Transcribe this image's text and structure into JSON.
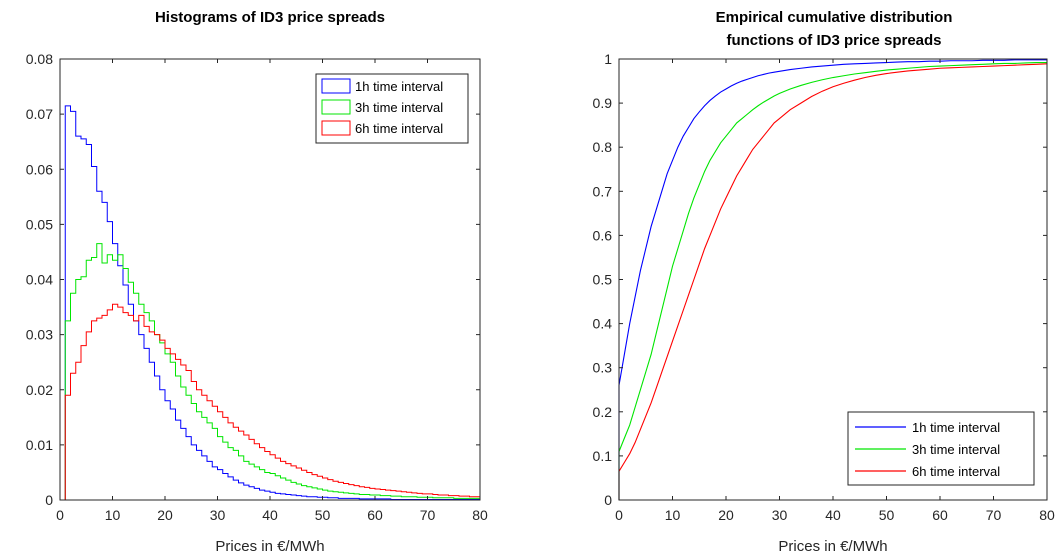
{
  "chart_data": [
    {
      "type": "histogram",
      "title": "Histograms of ID3 price spreads",
      "xlabel": "Prices in €/MWh",
      "ylabel": "",
      "xlim": [
        0,
        80
      ],
      "ylim": [
        0,
        0.08
      ],
      "xticks": [
        "0",
        "10",
        "20",
        "30",
        "40",
        "50",
        "60",
        "70",
        "80"
      ],
      "yticks": [
        "0",
        "0.01",
        "0.02",
        "0.03",
        "0.04",
        "0.05",
        "0.06",
        "0.07",
        "0.08"
      ],
      "bin_edges_start": 1,
      "bin_width": 1,
      "grid": false,
      "legend_position": "top-right",
      "series": [
        {
          "name": "1h time interval",
          "color": "#0000ff",
          "values": [
            0.0715,
            0.0705,
            0.066,
            0.0655,
            0.0645,
            0.0605,
            0.056,
            0.054,
            0.0505,
            0.0465,
            0.0425,
            0.039,
            0.0355,
            0.0325,
            0.03,
            0.0275,
            0.025,
            0.0225,
            0.02,
            0.018,
            0.0165,
            0.0145,
            0.013,
            0.0115,
            0.01,
            0.009,
            0.008,
            0.007,
            0.006,
            0.0055,
            0.0048,
            0.0042,
            0.0036,
            0.0031,
            0.0027,
            0.0024,
            0.0021,
            0.0018,
            0.0016,
            0.0014,
            0.0012,
            0.0011,
            0.001,
            0.0009,
            0.0008,
            0.0007,
            0.0006,
            0.0006,
            0.0005,
            0.0005,
            0.0004,
            0.0004,
            0.0003,
            0.0003,
            0.0003,
            0.0003,
            0.0002,
            0.0002,
            0.0002,
            0.0002,
            0.0002,
            0.0002,
            0.0001,
            0.0001,
            0.0001,
            0.0001,
            0.0001,
            0.0001,
            0.0001,
            0.0001,
            0.0001,
            0.0001,
            0.0001,
            0.0001,
            0.0001,
            0.0001,
            0.0001,
            0.0001,
            0.0001
          ]
        },
        {
          "name": "3h time interval",
          "color": "#00e600",
          "values": [
            0.0325,
            0.0375,
            0.04,
            0.0405,
            0.0435,
            0.044,
            0.0465,
            0.043,
            0.0445,
            0.0435,
            0.0445,
            0.042,
            0.0395,
            0.0375,
            0.0355,
            0.034,
            0.0325,
            0.03,
            0.0285,
            0.0265,
            0.025,
            0.0225,
            0.0205,
            0.019,
            0.0175,
            0.016,
            0.015,
            0.014,
            0.013,
            0.0115,
            0.0105,
            0.0095,
            0.009,
            0.008,
            0.007,
            0.0065,
            0.006,
            0.0055,
            0.005,
            0.0048,
            0.0044,
            0.004,
            0.0036,
            0.0032,
            0.0029,
            0.0026,
            0.0024,
            0.0022,
            0.002,
            0.0018,
            0.0016,
            0.0015,
            0.0014,
            0.0013,
            0.0012,
            0.0011,
            0.001,
            0.001,
            0.0009,
            0.0009,
            0.0008,
            0.0008,
            0.0007,
            0.0007,
            0.0006,
            0.0006,
            0.0006,
            0.0005,
            0.0005,
            0.0005,
            0.0004,
            0.0004,
            0.0004,
            0.0004,
            0.0003,
            0.0003,
            0.0003,
            0.0003,
            0.0003
          ]
        },
        {
          "name": "6h time interval",
          "color": "#ff0000",
          "values": [
            0.019,
            0.023,
            0.025,
            0.028,
            0.0305,
            0.0325,
            0.033,
            0.0335,
            0.0345,
            0.0355,
            0.035,
            0.034,
            0.0335,
            0.0325,
            0.0335,
            0.0315,
            0.0305,
            0.03,
            0.029,
            0.0275,
            0.0265,
            0.0255,
            0.0245,
            0.0235,
            0.0215,
            0.02,
            0.019,
            0.018,
            0.017,
            0.016,
            0.015,
            0.014,
            0.0132,
            0.0125,
            0.0118,
            0.011,
            0.0102,
            0.0095,
            0.0088,
            0.0082,
            0.0076,
            0.007,
            0.0066,
            0.0062,
            0.0058,
            0.0054,
            0.005,
            0.0046,
            0.0043,
            0.004,
            0.0037,
            0.0034,
            0.0032,
            0.003,
            0.0028,
            0.0026,
            0.0024,
            0.0023,
            0.0021,
            0.002,
            0.0019,
            0.0018,
            0.0017,
            0.0016,
            0.0015,
            0.0014,
            0.0013,
            0.0012,
            0.0011,
            0.0011,
            0.001,
            0.0009,
            0.0009,
            0.0008,
            0.0008,
            0.0007,
            0.0007,
            0.0006,
            0.0006
          ]
        }
      ]
    },
    {
      "type": "line",
      "title": "Empirical cumulative distribution functions of ID3 price spreads",
      "title_lines": [
        "Empirical cumulative distribution",
        "functions of ID3 price spreads"
      ],
      "xlabel": "Prices in €/MWh",
      "ylabel": "",
      "xlim": [
        0,
        80
      ],
      "ylim": [
        0,
        1
      ],
      "xticks": [
        "0",
        "10",
        "20",
        "30",
        "40",
        "50",
        "60",
        "70",
        "80"
      ],
      "yticks": [
        "0",
        "0.1",
        "0.2",
        "0.3",
        "0.4",
        "0.5",
        "0.6",
        "0.7",
        "0.8",
        "0.9",
        "1"
      ],
      "grid": false,
      "legend_position": "bottom-right",
      "x": [
        0,
        1,
        2,
        3,
        4,
        5,
        6,
        7,
        8,
        9,
        10,
        11,
        12,
        13,
        14,
        15,
        16,
        17,
        18,
        19,
        20,
        21,
        22,
        23,
        24,
        25,
        26,
        27,
        28,
        29,
        30,
        32,
        34,
        36,
        38,
        40,
        42,
        44,
        46,
        48,
        50,
        52,
        54,
        56,
        58,
        60,
        62,
        64,
        66,
        68,
        70,
        72,
        74,
        76,
        78,
        80
      ],
      "series": [
        {
          "name": "1h time interval",
          "color": "#0000ff",
          "start": 0.26,
          "values": [
            0.26,
            0.33,
            0.4,
            0.46,
            0.52,
            0.57,
            0.62,
            0.66,
            0.7,
            0.74,
            0.77,
            0.8,
            0.825,
            0.845,
            0.865,
            0.88,
            0.894,
            0.906,
            0.916,
            0.925,
            0.932,
            0.939,
            0.945,
            0.95,
            0.954,
            0.958,
            0.962,
            0.965,
            0.968,
            0.97,
            0.972,
            0.976,
            0.979,
            0.982,
            0.984,
            0.986,
            0.988,
            0.989,
            0.99,
            0.991,
            0.992,
            0.993,
            0.994,
            0.994,
            0.995,
            0.995,
            0.996,
            0.996,
            0.996,
            0.997,
            0.997,
            0.997,
            0.998,
            0.998,
            0.998,
            0.998
          ]
        },
        {
          "name": "3h time interval",
          "color": "#00e600",
          "start": 0.11,
          "values": [
            0.11,
            0.14,
            0.17,
            0.21,
            0.25,
            0.29,
            0.33,
            0.38,
            0.43,
            0.48,
            0.53,
            0.57,
            0.61,
            0.65,
            0.685,
            0.715,
            0.745,
            0.77,
            0.79,
            0.81,
            0.825,
            0.84,
            0.855,
            0.865,
            0.875,
            0.885,
            0.894,
            0.902,
            0.909,
            0.916,
            0.922,
            0.932,
            0.94,
            0.947,
            0.953,
            0.958,
            0.962,
            0.966,
            0.969,
            0.972,
            0.975,
            0.977,
            0.979,
            0.981,
            0.983,
            0.984,
            0.985,
            0.986,
            0.987,
            0.988,
            0.989,
            0.99,
            0.99,
            0.991,
            0.992,
            0.992
          ]
        },
        {
          "name": "6h time interval",
          "color": "#ff0000",
          "start": 0.065,
          "values": [
            0.065,
            0.085,
            0.105,
            0.13,
            0.16,
            0.19,
            0.22,
            0.255,
            0.29,
            0.325,
            0.36,
            0.395,
            0.43,
            0.465,
            0.5,
            0.535,
            0.57,
            0.6,
            0.63,
            0.66,
            0.685,
            0.71,
            0.735,
            0.755,
            0.775,
            0.795,
            0.81,
            0.825,
            0.84,
            0.855,
            0.865,
            0.885,
            0.9,
            0.915,
            0.927,
            0.937,
            0.945,
            0.952,
            0.958,
            0.963,
            0.967,
            0.97,
            0.973,
            0.975,
            0.977,
            0.979,
            0.98,
            0.981,
            0.982,
            0.983,
            0.984,
            0.985,
            0.986,
            0.987,
            0.988,
            0.989
          ]
        }
      ]
    }
  ]
}
